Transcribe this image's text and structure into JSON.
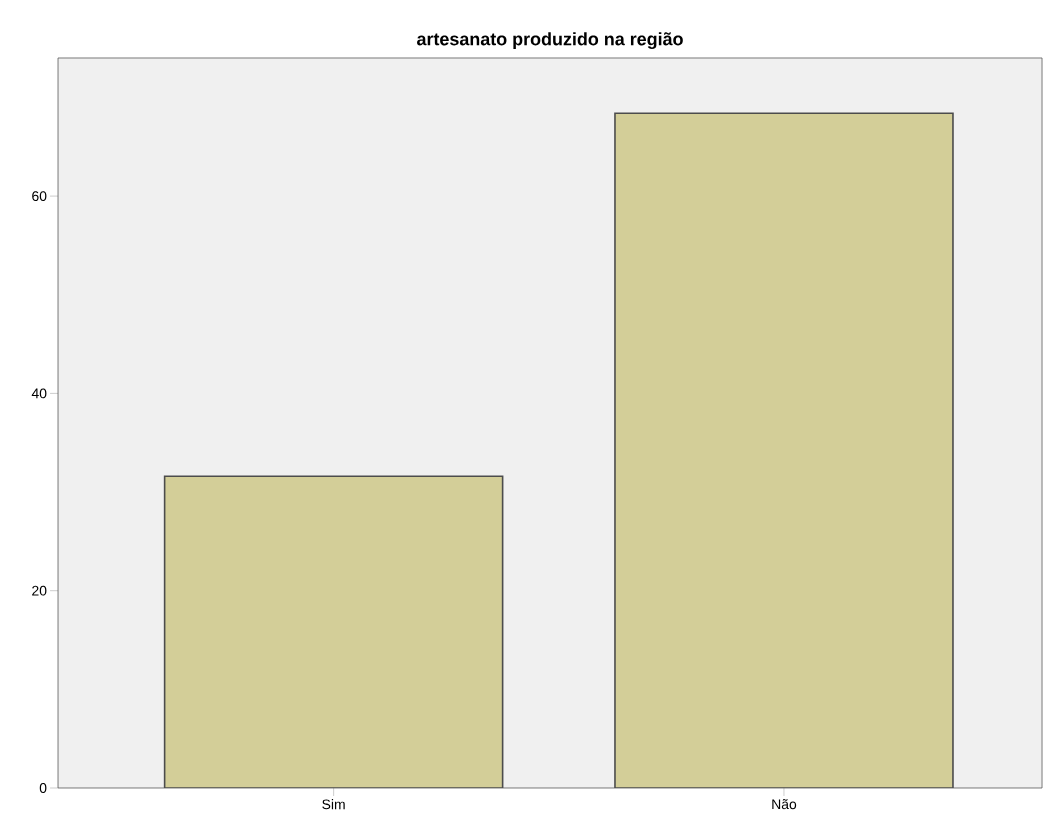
{
  "chart_data": {
    "type": "bar",
    "title": "artesanato produzido na região",
    "categories": [
      "Sim",
      "Não"
    ],
    "values": [
      31.6,
      68.4
    ],
    "color": "#d3ce98",
    "ylim": [
      0,
      74
    ],
    "yticks": [
      0,
      20,
      40,
      60
    ],
    "grid": false
  }
}
